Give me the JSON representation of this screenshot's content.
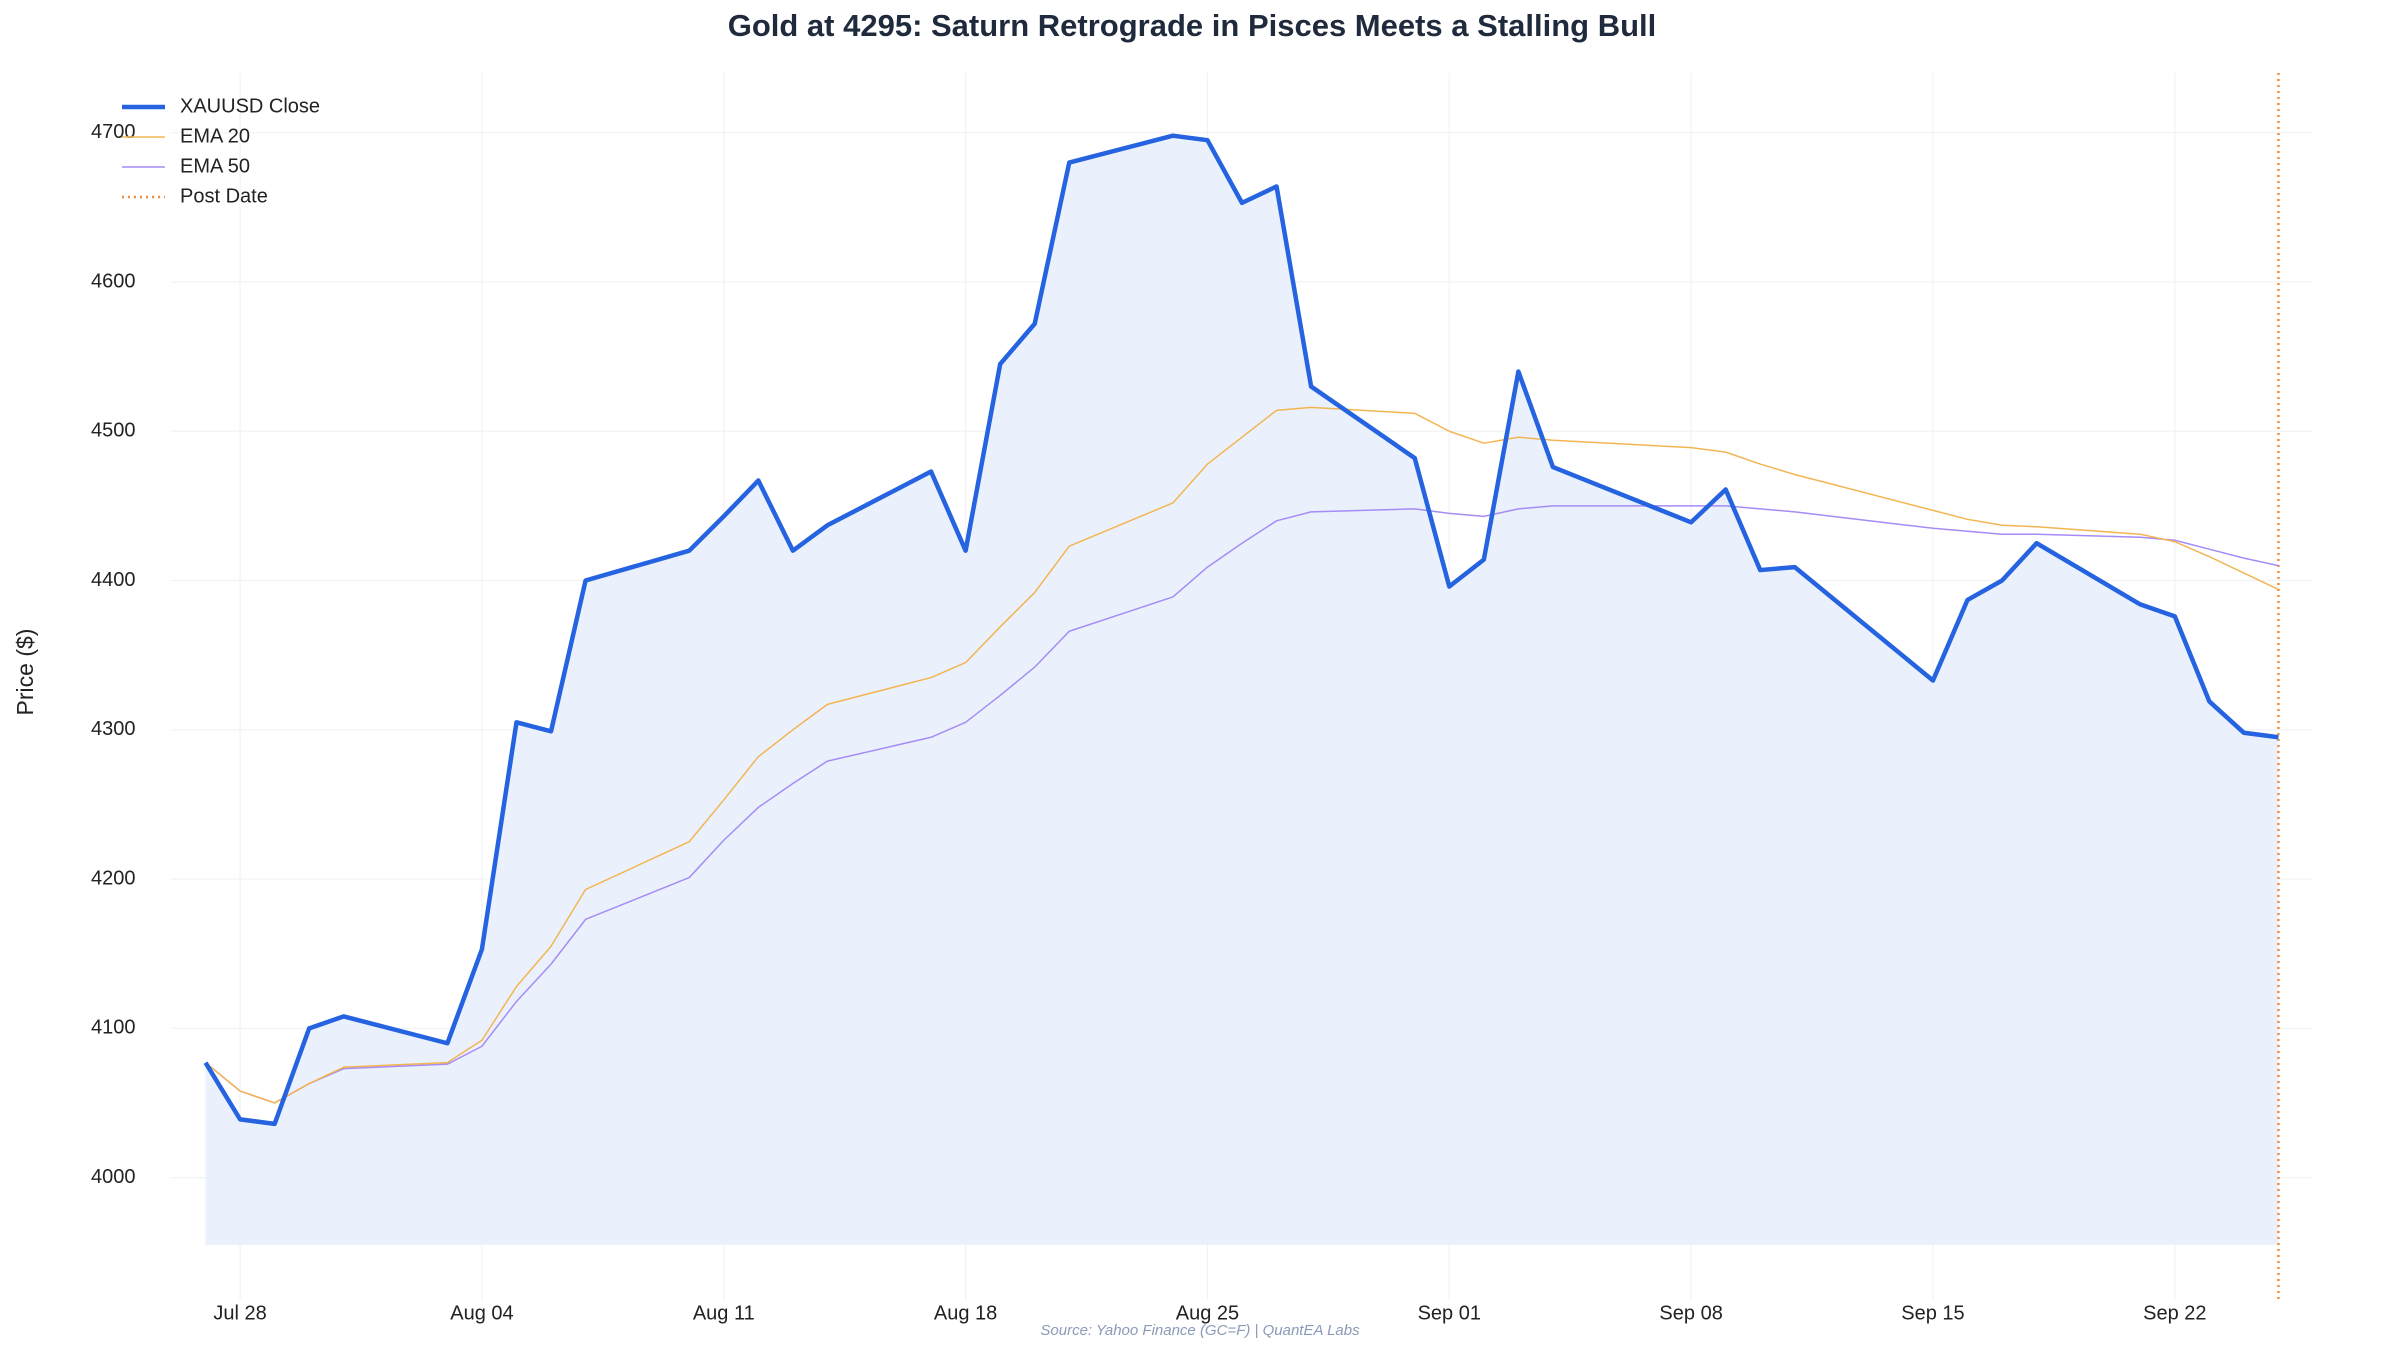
{
  "chart_data": {
    "type": "line",
    "title": "Gold at 4295: Saturn Retrograde in Pisces Meets a Stalling Bull",
    "y_label": "Price ($)",
    "source": "Source: Yahoo Finance (GC=F) | QuantEA Labs",
    "x": [
      "07-27",
      "07-28",
      "07-29",
      "07-30",
      "07-31",
      "08-03",
      "08-04",
      "08-05",
      "08-06",
      "08-07",
      "08-10",
      "08-11",
      "08-12",
      "08-13",
      "08-14",
      "08-17",
      "08-18",
      "08-19",
      "08-20",
      "08-21",
      "08-24",
      "08-25",
      "08-26",
      "08-27",
      "08-28",
      "08-31",
      "09-01",
      "09-02",
      "09-03",
      "09-04",
      "09-08",
      "09-09",
      "09-10",
      "09-11",
      "09-15",
      "09-16",
      "09-17",
      "09-18",
      "09-21",
      "09-22",
      "09-23",
      "09-24",
      "09-25"
    ],
    "series": [
      {
        "name": "XAUUSD Close",
        "color": "#2563e0",
        "width": 3,
        "values": [
          4077,
          4039,
          4036,
          4100,
          4108,
          4090,
          4153,
          4305,
          4299,
          4400,
          4420,
          4443,
          4467,
          4420,
          4437,
          4473,
          4420,
          4545,
          4572,
          4680,
          4698,
          4695,
          4653,
          4664,
          4530,
          4482,
          4396,
          4414,
          4540,
          4476,
          4439,
          4461,
          4407,
          4409,
          4333,
          4387,
          4400,
          4425,
          4384,
          4376,
          4319,
          4298,
          4295
        ]
      },
      {
        "name": "EMA 20",
        "color": "#f3b552",
        "width": 1,
        "values": [
          4077,
          4058,
          4050,
          4063,
          4074,
          4077,
          4092,
          4128,
          4155,
          4193,
          4225,
          4253,
          4282,
          4300,
          4317,
          4335,
          4345,
          4369,
          4392,
          4423,
          4452,
          4478,
          4496,
          4514,
          4516,
          4512,
          4500,
          4492,
          4496,
          4494,
          4489,
          4486,
          4478,
          4471,
          4447,
          4441,
          4437,
          4436,
          4431,
          4426,
          4416,
          4405,
          4394
        ]
      },
      {
        "name": "EMA 50",
        "color": "#a68cf5",
        "width": 1,
        "values": [
          4077,
          4058,
          4050,
          4063,
          4073,
          4076,
          4088,
          4118,
          4143,
          4173,
          4201,
          4226,
          4248,
          4264,
          4279,
          4295,
          4305,
          4323,
          4342,
          4366,
          4389,
          4409,
          4425,
          4440,
          4446,
          4448,
          4445,
          4443,
          4448,
          4450,
          4450,
          4450,
          4448,
          4446,
          4435,
          4433,
          4431,
          4431,
          4429,
          4427,
          4421,
          4415,
          4410
        ]
      }
    ],
    "fill_to": 3955,
    "fill_color": "#eaf1fc",
    "vline": {
      "name": "Post Date",
      "x": "09-25",
      "color": "#f58c3a"
    },
    "xlim": [
      "07-26",
      "09-26"
    ],
    "xticks": [
      {
        "value": "07-28",
        "label": "Jul 28"
      },
      {
        "value": "08-04",
        "label": "Aug 04"
      },
      {
        "value": "08-11",
        "label": "Aug 11"
      },
      {
        "value": "08-18",
        "label": "Aug 18"
      },
      {
        "value": "08-25",
        "label": "Aug 25"
      },
      {
        "value": "09-01",
        "label": "Sep 01"
      },
      {
        "value": "09-08",
        "label": "Sep 08"
      },
      {
        "value": "09-15",
        "label": "Sep 15"
      },
      {
        "value": "09-22",
        "label": "Sep 22"
      }
    ],
    "ylim": [
      3918,
      4740
    ],
    "yticks": [
      4000,
      4100,
      4200,
      4300,
      4400,
      4500,
      4600,
      4700
    ],
    "grid": true,
    "legend": "upper left"
  }
}
